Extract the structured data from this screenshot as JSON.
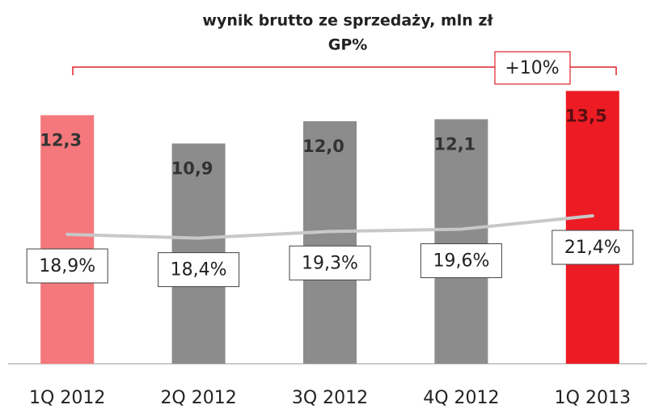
{
  "chart_data": {
    "type": "bar",
    "title": "wynik brutto ze sprzedaży, mln zł",
    "subtitle": "GP%",
    "annotation": "+10%",
    "categories": [
      "1Q 2012",
      "2Q 2012",
      "3Q 2012",
      "4Q 2012",
      "1Q 2013"
    ],
    "ylim": [
      0,
      16
    ],
    "y2lim": [
      1.5,
      45
    ],
    "series": [
      {
        "values": [
          12.3,
          10.9,
          12.0,
          12.1,
          13.5
        ],
        "value_labels": [
          "12,3",
          "10,9",
          "12,0",
          "12,1",
          "13,5"
        ],
        "colors": [
          "#f4787c",
          "#8c8c8c",
          "#8c8c8c",
          "#8c8c8c",
          "#ed1c24"
        ]
      },
      {
        "type": "line",
        "axis": "y2",
        "color": "#c8c8c8",
        "values": [
          18.9,
          18.4,
          19.3,
          19.6,
          21.4
        ],
        "value_labels": [
          "18,9%",
          "18,4%",
          "19,3%",
          "19,6%",
          "21,4%"
        ]
      }
    ]
  }
}
